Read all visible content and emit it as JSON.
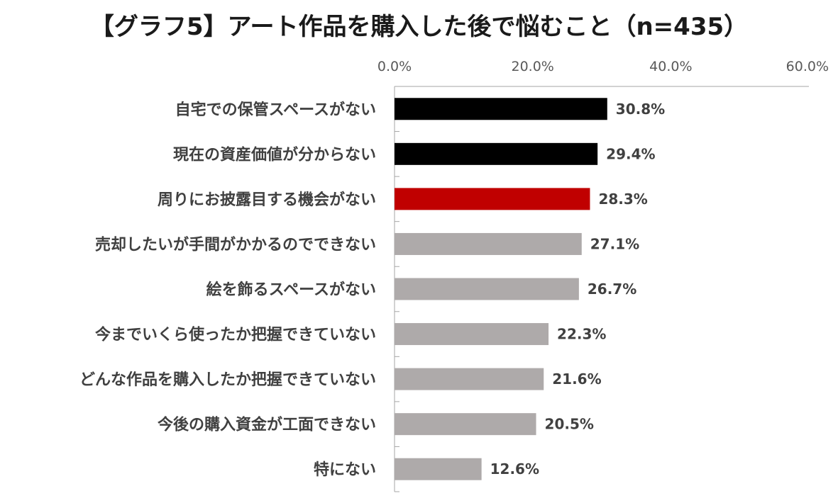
{
  "chart_data": {
    "type": "bar",
    "orientation": "horizontal",
    "title": "【グラフ5】アート作品を購入した後で悩むこと（n=435）",
    "categories": [
      "自宅での保管スペースがない",
      "現在の資産価値が分からない",
      "周りにお披露目する機会がない",
      "売却したいが手間がかかるのでできない",
      "絵を飾るスペースがない",
      "今までいくら使ったか把握できていない",
      "どんな作品を購入したか把握できていない",
      "今後の購入資金が工面できない",
      "特にない"
    ],
    "values": [
      30.8,
      29.4,
      28.3,
      27.1,
      26.7,
      22.3,
      21.6,
      20.5,
      12.6
    ],
    "data_labels": [
      "30.8%",
      "29.4%",
      "28.3%",
      "27.1%",
      "26.7%",
      "22.3%",
      "21.6%",
      "20.5%",
      "12.6%"
    ],
    "bar_colors": [
      "#000000",
      "#000000",
      "#c00000",
      "#aeaaaa",
      "#aeaaaa",
      "#aeaaaa",
      "#aeaaaa",
      "#aeaaaa",
      "#aeaaaa"
    ],
    "xlim": [
      0,
      60
    ],
    "x_ticks": [
      0,
      20,
      40,
      60
    ],
    "x_tick_labels": [
      "0.0%",
      "20.0%",
      "40.0%",
      "60.0%"
    ],
    "axis_position": "top",
    "grid": false,
    "legend": "none"
  }
}
